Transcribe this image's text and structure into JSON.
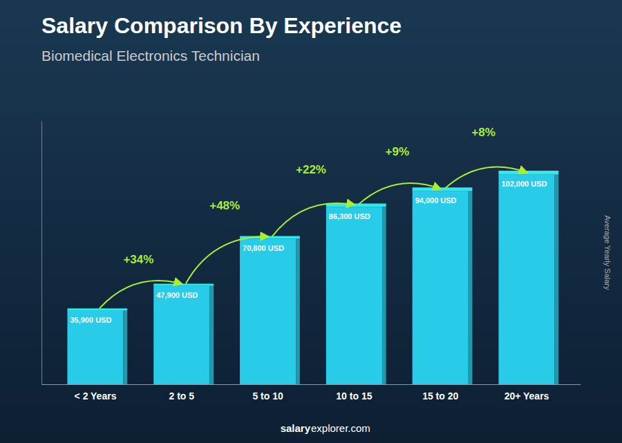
{
  "chart_data": {
    "type": "bar",
    "title": "Salary Comparison By Experience",
    "subtitle": "Biomedical Electronics Technician",
    "categories": [
      "< 2 Years",
      "2 to 5",
      "5 to 10",
      "10 to 15",
      "15 to 20",
      "20+ Years"
    ],
    "values": [
      35900,
      47900,
      70800,
      86300,
      94000,
      102000
    ],
    "value_labels": [
      "35,900 USD",
      "47,900 USD",
      "70,800 USD",
      "86,300 USD",
      "94,000 USD",
      "102,000 USD"
    ],
    "data_labels": true,
    "annotations": [
      "+34%",
      "+48%",
      "+22%",
      "+9%",
      "+8%"
    ],
    "y_label": "Average Yearly Salary",
    "source": [
      "salary",
      "explorer.com"
    ],
    "color": "#29cce8",
    "ylim": [
      0,
      128000
    ],
    "tick_labels": "x",
    "grid": false
  }
}
